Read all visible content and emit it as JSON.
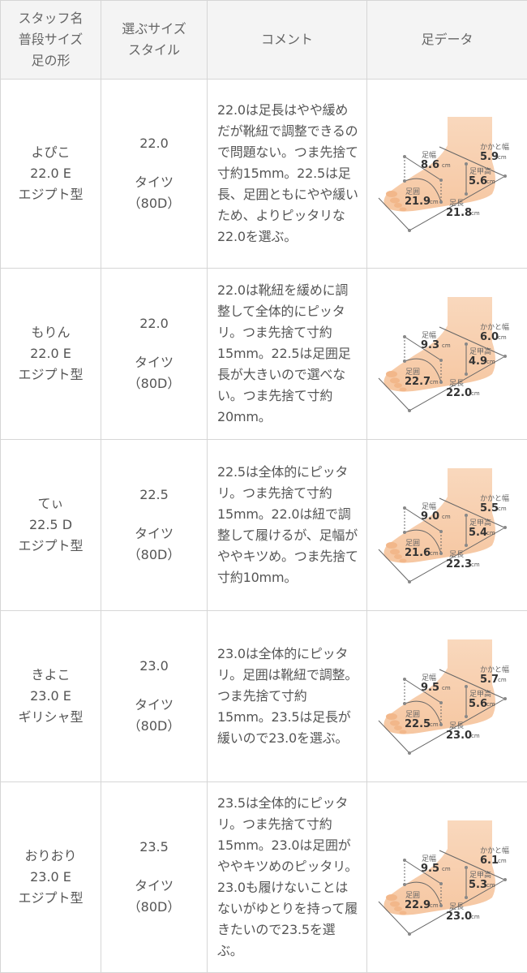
{
  "header": {
    "col1": [
      "スタッフ名",
      "普段サイズ",
      "足の形"
    ],
    "col2": [
      "選ぶサイズ",
      "スタイル"
    ],
    "col3": "コメント",
    "col4": "足データ"
  },
  "foot_labels": {
    "width": "足幅",
    "heel": "かかと幅",
    "instep": "足甲高",
    "girth": "足囲",
    "length": "足長",
    "unit": "cm"
  },
  "colors": {
    "skin": "#f6c7a2",
    "line": "#666666",
    "border": "#d6d6d6",
    "header_bg": "#f4f4f4"
  },
  "rows": [
    {
      "name": "よぴこ",
      "usual": "22.0 E",
      "shape": "エジプト型",
      "size": "22.0",
      "style": "タイツ",
      "denier": "（80D）",
      "comment": "22.0は足長はやや緩めだが靴紐で調整できるので問題ない。つま先捨て寸約15mm。22.5は足長、足囲ともにやや緩いため、よりピッタリな22.0を選ぶ。",
      "foot": {
        "width": "8.6",
        "heel": "5.9",
        "instep": "5.6",
        "girth": "21.9",
        "length": "21.8"
      }
    },
    {
      "name": "もりん",
      "usual": "22.0 E",
      "shape": "エジプト型",
      "size": "22.0",
      "style": "タイツ",
      "denier": "（80D）",
      "comment": "22.0は靴紐を緩めに調整して全体的にピッタリ。つま先捨て寸約15mm。22.5は足囲足長が大きいので選べない。つま先捨て寸約20mm。",
      "foot": {
        "width": "9.3",
        "heel": "6.0",
        "instep": "4.9",
        "girth": "22.7",
        "length": "22.0"
      }
    },
    {
      "name": "てぃ",
      "usual": "22.5 D",
      "shape": "エジプト型",
      "size": "22.5",
      "style": "タイツ",
      "denier": "（80D）",
      "comment": "22.5は全体的にピッタリ。つま先捨て寸約15mm。22.0は紐で調整して履けるが、足幅がややキツめ。つま先捨て寸約10mm。",
      "foot": {
        "width": "9.0",
        "heel": "5.5",
        "instep": "5.4",
        "girth": "21.6",
        "length": "22.3"
      }
    },
    {
      "name": "きよこ",
      "usual": "23.0 E",
      "shape": "ギリシャ型",
      "size": "23.0",
      "style": "タイツ",
      "denier": "（80D）",
      "comment": "23.0は全体的にピッタリ。足囲は靴紐で調整。つま先捨て寸約15mm。23.5は足長が緩いので23.0を選ぶ。",
      "foot": {
        "width": "9.5",
        "heel": "5.7",
        "instep": "5.6",
        "girth": "22.5",
        "length": "23.0"
      }
    },
    {
      "name": "おりおり",
      "usual": "23.0 E",
      "shape": "エジプト型",
      "size": "23.5",
      "style": "タイツ",
      "denier": "（80D）",
      "comment": "23.5は全体的にピッタリ。つま先捨て寸約15mm。23.0は足囲がややキツめのピッタリ。23.0も履けないことはないがゆとりを持って履きたいので23.5を選ぶ。",
      "foot": {
        "width": "9.5",
        "heel": "6.1",
        "instep": "5.3",
        "girth": "22.9",
        "length": "23.0"
      }
    }
  ]
}
